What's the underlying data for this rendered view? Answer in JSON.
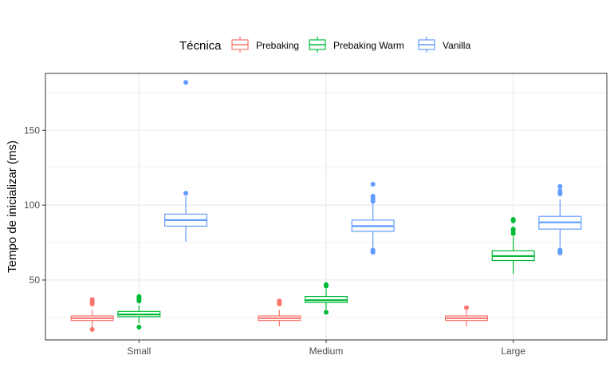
{
  "chart_data": {
    "type": "boxplot",
    "categories": [
      "Small",
      "Medium",
      "Large"
    ],
    "ylabel": "Tempo de inicializar (ms)",
    "ylim": [
      10,
      188
    ],
    "yticks": [
      50,
      100,
      150
    ],
    "grid": true,
    "legend": {
      "title": "Técnica",
      "position": "top"
    },
    "series": [
      {
        "name": "Prebaking",
        "color": "#F8766D",
        "boxes": [
          {
            "min": 18.5,
            "q1": 23,
            "median": 24.5,
            "q3": 26,
            "max": 30,
            "outliers": [
              17,
              34,
              35,
              36,
              37
            ]
          },
          {
            "min": 19,
            "q1": 23,
            "median": 24.5,
            "q3": 26,
            "max": 30,
            "outliers": [
              34,
              35,
              36
            ]
          },
          {
            "min": 19,
            "q1": 23,
            "median": 24.5,
            "q3": 26,
            "max": 29.5,
            "outliers": [
              31.5
            ]
          }
        ]
      },
      {
        "name": "Prebaking Warm",
        "color": "#00BA38",
        "boxes": [
          {
            "min": 21,
            "q1": 25.5,
            "median": 27,
            "q3": 29,
            "max": 33,
            "outliers": [
              18.5,
              36,
              37,
              38,
              39
            ]
          },
          {
            "min": 30.5,
            "q1": 35,
            "median": 36.5,
            "q3": 39,
            "max": 44,
            "outliers": [
              28.5,
              46,
              46.5,
              47
            ]
          },
          {
            "min": 54,
            "q1": 63,
            "median": 66,
            "q3": 69.5,
            "max": 79,
            "outliers": [
              81,
              83,
              84,
              89.5,
              90.5
            ]
          }
        ]
      },
      {
        "name": "Vanilla",
        "color": "#619CFF",
        "boxes": [
          {
            "min": 75.5,
            "q1": 86,
            "median": 90,
            "q3": 94,
            "max": 106,
            "outliers": [
              108,
              182
            ]
          },
          {
            "min": 71,
            "q1": 82.5,
            "median": 86,
            "q3": 90,
            "max": 101,
            "outliers": [
              68.5,
              69.5,
              70,
              102.5,
              103.5,
              105,
              106,
              114
            ]
          },
          {
            "min": 72,
            "q1": 84,
            "median": 88.5,
            "q3": 92.5,
            "max": 104,
            "outliers": [
              68,
              69,
              70,
              107.5,
              108.5,
              109.5,
              112.5
            ]
          }
        ]
      }
    ]
  }
}
